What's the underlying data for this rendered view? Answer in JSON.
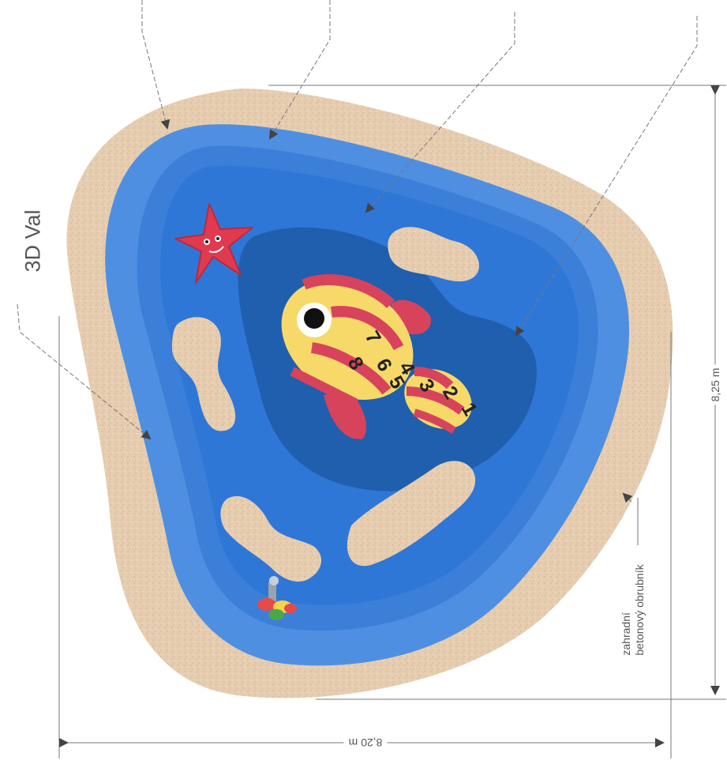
{
  "labels": {
    "val_3d": "3D Val",
    "width_dimension": "8,20 m",
    "height_dimension": "8,25 m",
    "curb_line1": "zahradní",
    "curb_line2": "betonový obrubník"
  },
  "fish_hopscotch_numbers": [
    "1",
    "2",
    "3",
    "4",
    "5",
    "6",
    "7",
    "8"
  ],
  "colors": {
    "sand": "#e6cdb0",
    "pool_rim": "#4f8fe2",
    "shallow_water": "#2f77d6",
    "deep_water": "#1f5fae",
    "fish_body": "#f7d96a",
    "fish_stripes": "#d8435c",
    "starfish": "#e03a50"
  },
  "icons": [
    "starfish-icon",
    "fish-icon",
    "fountain-icon"
  ]
}
